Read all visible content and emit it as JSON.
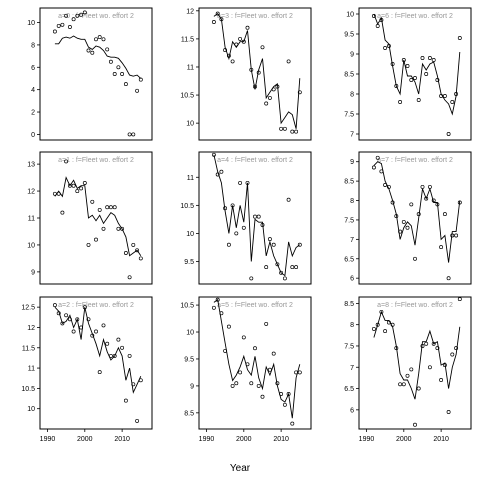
{
  "figure": {
    "xlabel": "Year"
  },
  "chart_data": [
    {
      "type": "line",
      "strip_label": "a=0 : f=Fleet wo. effort 2",
      "x_ticks": [
        1990,
        2000,
        2010
      ],
      "y_ticks": [
        0,
        2,
        4,
        6,
        8,
        10
      ],
      "xlim": [
        1988,
        2018
      ],
      "ylim": [
        -0.5,
        11.3
      ],
      "observed": {
        "x": [
          1992,
          1993,
          1994,
          1995,
          1996,
          1997,
          1998,
          1999,
          2000,
          2001,
          2002,
          2003,
          2004,
          2005,
          2006,
          2007,
          2008,
          2009,
          2010,
          2011,
          2012,
          2013,
          2014,
          2015
        ],
        "y": [
          9.2,
          9.7,
          9.8,
          10.6,
          9.6,
          10.3,
          10.6,
          10.7,
          10.9,
          7.5,
          7.3,
          8.5,
          8.7,
          8.5,
          7.6,
          6.5,
          5.4,
          6.0,
          5.4,
          4.5,
          0.0,
          0.0,
          3.9,
          4.9
        ]
      },
      "fitted": {
        "x": [
          1992,
          1993,
          1994,
          1995,
          1996,
          1997,
          1998,
          1999,
          2000,
          2001,
          2002,
          2003,
          2004,
          2005,
          2006,
          2007,
          2008,
          2009,
          2010,
          2011,
          2012,
          2013,
          2014,
          2015
        ],
        "y": [
          8.1,
          8.1,
          8.6,
          8.7,
          8.6,
          8.8,
          8.6,
          8.5,
          8.5,
          7.8,
          7.6,
          7.9,
          7.8,
          7.5,
          7.0,
          6.9,
          6.9,
          6.8,
          6.4,
          5.9,
          5.3,
          5.2,
          5.3,
          5.0
        ]
      }
    },
    {
      "type": "line",
      "strip_label": "a=1 : f=Fleet wo. effort 2",
      "x_ticks": [
        1990,
        2000,
        2010
      ],
      "y_ticks": [
        9,
        10,
        11,
        12,
        13
      ],
      "xlim": [
        1988,
        2018
      ],
      "ylim": [
        8.55,
        13.45
      ],
      "observed": {
        "x": [
          1992,
          1993,
          1994,
          1995,
          1996,
          1997,
          1998,
          1999,
          2000,
          2001,
          2002,
          2003,
          2004,
          2005,
          2006,
          2007,
          2008,
          2009,
          2010,
          2011,
          2012,
          2013,
          2014,
          2015
        ],
        "y": [
          11.9,
          11.9,
          11.2,
          13.1,
          12.2,
          12.2,
          12.0,
          12.1,
          12.3,
          10.0,
          11.6,
          10.2,
          11.3,
          10.6,
          11.4,
          11.4,
          11.4,
          10.6,
          10.6,
          9.7,
          8.8,
          10.0,
          9.8,
          9.5
        ]
      },
      "fitted": {
        "x": [
          1992,
          1993,
          1994,
          1995,
          1996,
          1997,
          1998,
          1999,
          2000,
          2001,
          2002,
          2003,
          2004,
          2005,
          2006,
          2007,
          2008,
          2009,
          2010,
          2011,
          2012,
          2013,
          2014,
          2015
        ],
        "y": [
          11.8,
          12.0,
          11.8,
          12.5,
          12.2,
          12.4,
          12.1,
          12.2,
          12.2,
          11.0,
          11.1,
          10.9,
          11.1,
          10.8,
          11.0,
          11.2,
          11.1,
          10.8,
          10.6,
          10.3,
          9.6,
          9.7,
          9.8,
          9.6
        ]
      }
    },
    {
      "type": "line",
      "strip_label": "a=2 : f=Fleet wo. effort 2",
      "x_ticks": [
        1990,
        2000,
        2010
      ],
      "y_ticks": [
        10.0,
        10.5,
        11.0,
        11.5,
        12.0,
        12.5
      ],
      "xlim": [
        1988,
        2018
      ],
      "ylim": [
        9.5,
        12.75
      ],
      "observed": {
        "x": [
          1992,
          1993,
          1994,
          1995,
          1996,
          1997,
          1998,
          1999,
          2000,
          2001,
          2002,
          2003,
          2004,
          2005,
          2006,
          2007,
          2008,
          2009,
          2010,
          2011,
          2012,
          2013,
          2014,
          2015
        ],
        "y": [
          12.55,
          12.35,
          12.1,
          12.3,
          12.2,
          11.9,
          12.2,
          12.0,
          12.5,
          12.2,
          11.8,
          11.9,
          10.9,
          12.05,
          11.6,
          11.3,
          11.3,
          11.7,
          11.5,
          10.2,
          11.3,
          10.6,
          9.7,
          10.7
        ]
      },
      "fitted": {
        "x": [
          1992,
          1993,
          1994,
          1995,
          1996,
          1997,
          1998,
          1999,
          2000,
          2001,
          2002,
          2003,
          2004,
          2005,
          2006,
          2007,
          2008,
          2009,
          2010,
          2011,
          2012,
          2013,
          2014,
          2015
        ],
        "y": [
          12.5,
          12.4,
          12.1,
          12.15,
          12.3,
          12.0,
          12.2,
          11.7,
          12.5,
          12.1,
          11.85,
          11.6,
          11.3,
          11.7,
          11.4,
          11.2,
          11.3,
          11.5,
          11.3,
          10.7,
          11.0,
          10.4,
          10.6,
          10.8
        ]
      }
    },
    {
      "type": "line",
      "strip_label": "a=3 : f=Fleet wo. effort 2",
      "x_ticks": [
        1990,
        2000,
        2010
      ],
      "y_ticks": [
        10.0,
        10.5,
        11.0,
        11.5,
        12.0
      ],
      "xlim": [
        1988,
        2018
      ],
      "ylim": [
        9.7,
        12.05
      ],
      "observed": {
        "x": [
          1992,
          1993,
          1994,
          1995,
          1996,
          1997,
          1998,
          1999,
          2000,
          2001,
          2002,
          2003,
          2004,
          2005,
          2006,
          2007,
          2008,
          2009,
          2010,
          2011,
          2012,
          2013,
          2014,
          2015
        ],
        "y": [
          11.8,
          11.95,
          11.85,
          11.3,
          11.2,
          11.1,
          11.4,
          11.5,
          11.45,
          11.7,
          10.95,
          10.65,
          10.9,
          11.35,
          10.35,
          10.45,
          10.6,
          10.65,
          9.9,
          9.9,
          11.1,
          9.85,
          9.85,
          10.55
        ]
      },
      "fitted": {
        "x": [
          1992,
          1993,
          1994,
          1995,
          1996,
          1997,
          1998,
          1999,
          2000,
          2001,
          2002,
          2003,
          2004,
          2005,
          2006,
          2007,
          2008,
          2009,
          2010,
          2011,
          2012,
          2013,
          2014,
          2015
        ],
        "y": [
          11.9,
          11.95,
          11.85,
          11.35,
          11.15,
          11.45,
          11.35,
          11.45,
          11.45,
          11.65,
          10.95,
          10.6,
          10.95,
          11.15,
          10.45,
          10.55,
          10.65,
          10.7,
          10.0,
          10.1,
          10.2,
          10.15,
          9.9,
          10.8
        ]
      }
    },
    {
      "type": "line",
      "strip_label": "a=4 : f=Fleet wo. effort 2",
      "x_ticks": [
        1990,
        2000,
        2010
      ],
      "y_ticks": [
        9.5,
        10.0,
        10.5,
        11.0
      ],
      "xlim": [
        1988,
        2018
      ],
      "ylim": [
        9.1,
        11.45
      ],
      "observed": {
        "x": [
          1992,
          1993,
          1994,
          1995,
          1996,
          1997,
          1998,
          1999,
          2000,
          2001,
          2002,
          2003,
          2004,
          2005,
          2006,
          2007,
          2008,
          2009,
          2010,
          2011,
          2012,
          2013,
          2014,
          2015
        ],
        "y": [
          11.4,
          11.05,
          11.1,
          10.45,
          9.8,
          10.5,
          10.0,
          10.9,
          10.1,
          10.9,
          9.2,
          10.3,
          10.3,
          10.15,
          9.4,
          9.9,
          9.8,
          9.45,
          9.3,
          9.2,
          10.6,
          9.4,
          9.4,
          9.8
        ]
      },
      "fitted": {
        "x": [
          1992,
          1993,
          1994,
          1995,
          1996,
          1997,
          1998,
          1999,
          2000,
          2001,
          2002,
          2003,
          2004,
          2005,
          2006,
          2007,
          2008,
          2009,
          2010,
          2011,
          2012,
          2013,
          2014,
          2015
        ],
        "y": [
          11.4,
          11.1,
          10.9,
          10.4,
          10.0,
          10.5,
          10.1,
          10.5,
          10.2,
          10.9,
          9.5,
          10.25,
          10.2,
          10.2,
          9.6,
          9.85,
          9.6,
          9.45,
          9.3,
          9.25,
          9.85,
          9.6,
          9.75,
          9.8
        ]
      }
    },
    {
      "type": "line",
      "strip_label": "a=5 : f=Fleet wo. effort 2",
      "x_ticks": [
        1990,
        2000,
        2010
      ],
      "y_ticks": [
        8.5,
        9.0,
        9.5,
        10.0,
        10.5
      ],
      "xlim": [
        1988,
        2018
      ],
      "ylim": [
        8.2,
        10.65
      ],
      "observed": {
        "x": [
          1992,
          1993,
          1994,
          1995,
          1996,
          1997,
          1998,
          1999,
          2000,
          2001,
          2002,
          2003,
          2004,
          2005,
          2006,
          2007,
          2008,
          2009,
          2010,
          2011,
          2012,
          2013,
          2014,
          2015
        ],
        "y": [
          10.45,
          10.6,
          10.35,
          9.65,
          10.1,
          9.0,
          9.05,
          9.25,
          9.9,
          9.4,
          9.05,
          9.7,
          9.0,
          8.8,
          10.15,
          9.3,
          9.6,
          9.05,
          8.85,
          8.65,
          8.85,
          8.3,
          9.25,
          9.25
        ]
      },
      "fitted": {
        "x": [
          1992,
          1993,
          1994,
          1995,
          1996,
          1997,
          1998,
          1999,
          2000,
          2001,
          2002,
          2003,
          2004,
          2005,
          2006,
          2007,
          2008,
          2009,
          2010,
          2011,
          2012,
          2013,
          2014,
          2015
        ],
        "y": [
          10.55,
          10.6,
          10.2,
          9.8,
          9.4,
          9.1,
          9.2,
          9.35,
          9.55,
          9.3,
          9.2,
          9.55,
          9.15,
          8.95,
          9.35,
          9.2,
          9.4,
          9.0,
          8.75,
          8.7,
          8.85,
          8.4,
          9.15,
          9.4
        ]
      }
    },
    {
      "type": "line",
      "strip_label": "a=6 : f=Fleet wo. effort 2",
      "x_ticks": [
        1990,
        2000,
        2010
      ],
      "y_ticks": [
        7.0,
        7.5,
        8.0,
        8.5,
        9.0,
        9.5,
        10.0
      ],
      "xlim": [
        1988,
        2018
      ],
      "ylim": [
        6.85,
        10.15
      ],
      "observed": {
        "x": [
          1992,
          1993,
          1994,
          1995,
          1996,
          1997,
          1998,
          1999,
          2000,
          2001,
          2002,
          2003,
          2004,
          2005,
          2006,
          2007,
          2008,
          2009,
          2010,
          2011,
          2012,
          2013,
          2014,
          2015
        ],
        "y": [
          9.95,
          9.7,
          9.85,
          9.15,
          9.2,
          8.75,
          8.2,
          7.8,
          8.85,
          8.7,
          8.35,
          8.4,
          7.85,
          8.9,
          8.5,
          8.9,
          8.85,
          8.35,
          7.95,
          7.95,
          7.0,
          7.8,
          8.0,
          9.4
        ]
      },
      "fitted": {
        "x": [
          1992,
          1993,
          1994,
          1995,
          1996,
          1997,
          1998,
          1999,
          2000,
          2001,
          2002,
          2003,
          2004,
          2005,
          2006,
          2007,
          2008,
          2009,
          2010,
          2011,
          2012,
          2013,
          2014,
          2015
        ],
        "y": [
          10.0,
          9.75,
          9.9,
          9.35,
          9.25,
          8.7,
          8.2,
          8.0,
          8.85,
          8.45,
          8.45,
          8.3,
          8.0,
          8.75,
          8.6,
          8.75,
          8.8,
          8.45,
          8.0,
          7.85,
          7.75,
          7.5,
          7.95,
          9.05
        ]
      }
    },
    {
      "type": "line",
      "strip_label": "a=7 : f=Fleet wo. effort 2",
      "x_ticks": [
        1990,
        2000,
        2010
      ],
      "y_ticks": [
        6.0,
        6.5,
        7.0,
        7.5,
        8.0,
        8.5,
        9.0
      ],
      "xlim": [
        1988,
        2018
      ],
      "ylim": [
        5.85,
        9.25
      ],
      "observed": {
        "x": [
          1992,
          1993,
          1994,
          1995,
          1996,
          1997,
          1998,
          1999,
          2000,
          2001,
          2002,
          2003,
          2004,
          2005,
          2006,
          2007,
          2008,
          2009,
          2010,
          2011,
          2012,
          2013,
          2014,
          2015
        ],
        "y": [
          8.85,
          9.1,
          8.75,
          8.4,
          8.35,
          7.95,
          7.6,
          7.2,
          7.45,
          7.3,
          7.9,
          6.5,
          7.65,
          8.35,
          8.05,
          8.35,
          8.0,
          7.9,
          6.8,
          7.65,
          6.0,
          7.1,
          7.1,
          7.95
        ]
      },
      "fitted": {
        "x": [
          1992,
          1993,
          1994,
          1995,
          1996,
          1997,
          1998,
          1999,
          2000,
          2001,
          2002,
          2003,
          2004,
          2005,
          2006,
          2007,
          2008,
          2009,
          2010,
          2011,
          2012,
          2013,
          2014,
          2015
        ],
        "y": [
          8.9,
          9.0,
          8.95,
          8.5,
          8.3,
          8.0,
          7.65,
          7.0,
          7.3,
          7.45,
          7.35,
          6.85,
          7.55,
          8.3,
          8.05,
          8.3,
          7.95,
          7.95,
          7.0,
          7.1,
          6.4,
          7.2,
          7.2,
          8.0
        ]
      }
    },
    {
      "type": "line",
      "strip_label": "a=8 : f=Fleet wo. effort 2",
      "x_ticks": [
        1990,
        2000,
        2010
      ],
      "y_ticks": [
        6.0,
        6.5,
        7.0,
        7.5,
        8.0,
        8.5
      ],
      "xlim": [
        1988,
        2018
      ],
      "ylim": [
        5.55,
        8.65
      ],
      "observed": {
        "x": [
          1992,
          1993,
          1994,
          1995,
          1996,
          1997,
          1998,
          1999,
          2000,
          2001,
          2002,
          2003,
          2004,
          2005,
          2006,
          2007,
          2008,
          2009,
          2010,
          2011,
          2012,
          2013,
          2014,
          2015
        ],
        "y": [
          7.9,
          8.0,
          8.3,
          7.85,
          8.05,
          8.0,
          7.45,
          6.6,
          6.6,
          6.8,
          6.95,
          5.65,
          6.5,
          7.5,
          7.55,
          7.0,
          7.55,
          7.45,
          6.7,
          7.05,
          5.95,
          7.3,
          7.45,
          8.6
        ]
      },
      "fitted": {
        "x": [
          1992,
          1993,
          1994,
          1995,
          1996,
          1997,
          1998,
          1999,
          2000,
          2001,
          2002,
          2003,
          2004,
          2005,
          2006,
          2007,
          2008,
          2009,
          2010,
          2011,
          2012,
          2013,
          2014,
          2015
        ],
        "y": [
          7.7,
          8.0,
          8.3,
          8.1,
          8.1,
          7.95,
          7.5,
          6.85,
          6.7,
          6.7,
          6.5,
          6.25,
          6.85,
          7.6,
          7.6,
          7.85,
          7.55,
          7.6,
          7.05,
          7.1,
          6.5,
          7.0,
          7.3,
          7.95
        ]
      }
    }
  ]
}
